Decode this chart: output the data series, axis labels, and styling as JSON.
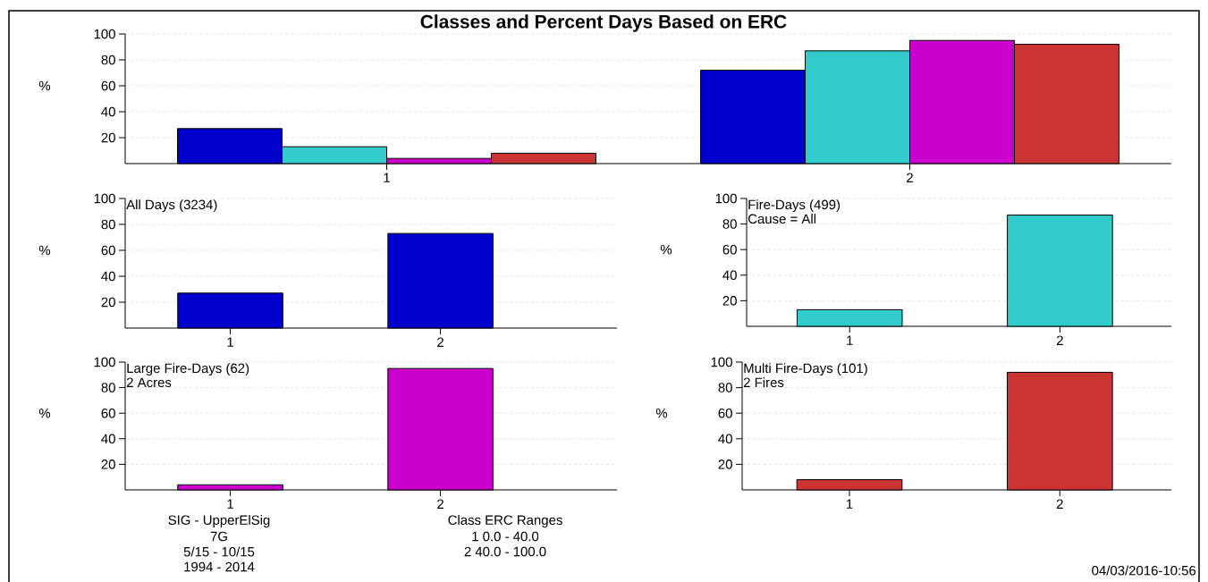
{
  "chart_data": [
    {
      "type": "bar",
      "title": "Classes and Percent Days Based on ERC",
      "categories": [
        "1",
        "2"
      ],
      "ylabel": "%",
      "ylim": [
        0,
        100
      ],
      "yticks": [
        20,
        40,
        60,
        80,
        100
      ],
      "grid": "y",
      "series": [
        {
          "color": "#0000cc",
          "values": [
            27,
            72
          ]
        },
        {
          "color": "#33cccc",
          "values": [
            13,
            87
          ]
        },
        {
          "color": "#cc00cc",
          "values": [
            4,
            95
          ]
        },
        {
          "color": "#cc3333",
          "values": [
            8,
            92
          ]
        }
      ]
    },
    {
      "type": "bar",
      "title": "All Days (3234)",
      "categories": [
        "1",
        "2"
      ],
      "ylabel": "%",
      "ylim": [
        0,
        100
      ],
      "yticks": [
        20,
        40,
        60,
        80,
        100
      ],
      "grid": "y",
      "color": "#0000cc",
      "values": [
        27,
        73
      ]
    },
    {
      "type": "bar",
      "title": "Fire-Days (499)",
      "subtitle": "Cause = All",
      "categories": [
        "1",
        "2"
      ],
      "ylabel": "%",
      "ylim": [
        0,
        100
      ],
      "yticks": [
        20,
        40,
        60,
        80,
        100
      ],
      "grid": "y",
      "color": "#33cccc",
      "values": [
        13,
        87
      ]
    },
    {
      "type": "bar",
      "title": "Large Fire-Days (62)",
      "subtitle": "2 Acres",
      "categories": [
        "1",
        "2"
      ],
      "ylabel": "%",
      "ylim": [
        0,
        100
      ],
      "yticks": [
        20,
        40,
        60,
        80,
        100
      ],
      "grid": "y",
      "color": "#cc00cc",
      "values": [
        4,
        95
      ],
      "annotations": [
        "SIG - UpperElSig",
        "7G",
        "5/15 - 10/15",
        "1994 - 2014",
        "Class ERC Ranges",
        "1 0.0 - 40.0",
        "2 40.0 - 100.0"
      ]
    },
    {
      "type": "bar",
      "title": "Multi Fire-Days (101)",
      "subtitle": "2 Fires",
      "categories": [
        "1",
        "2"
      ],
      "ylabel": "%",
      "ylim": [
        0,
        100
      ],
      "yticks": [
        20,
        40,
        60,
        80,
        100
      ],
      "grid": "y",
      "color": "#cc3333",
      "values": [
        8,
        92
      ],
      "annotations": [
        "04/03/2016-10:56"
      ]
    }
  ]
}
